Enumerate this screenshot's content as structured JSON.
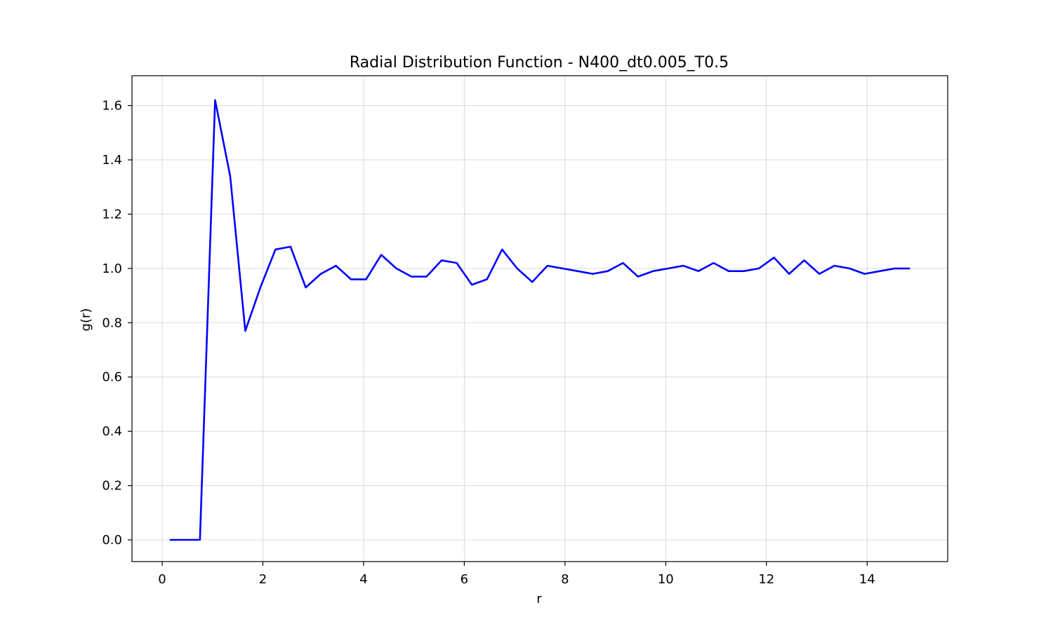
{
  "chart_data": {
    "type": "line",
    "title": "Radial Distribution Function - N400_dt0.005_T0.5",
    "xlabel": "r",
    "ylabel": "g(r)",
    "xlim": [
      -0.6,
      15.6
    ],
    "ylim": [
      -0.08,
      1.71
    ],
    "xticks": [
      0,
      2,
      4,
      6,
      8,
      10,
      12,
      14
    ],
    "yticks": [
      0.0,
      0.2,
      0.4,
      0.6,
      0.8,
      1.0,
      1.2,
      1.4,
      1.6
    ],
    "xtick_labels": [
      "0",
      "2",
      "4",
      "6",
      "8",
      "10",
      "12",
      "14"
    ],
    "ytick_labels": [
      "0.0",
      "0.2",
      "0.4",
      "0.6",
      "0.8",
      "1.0",
      "1.2",
      "1.4",
      "1.6"
    ],
    "grid": true,
    "color": "#0000ff",
    "series": [
      {
        "x": [
          0.15,
          0.45,
          0.75,
          1.05,
          1.35,
          1.65,
          1.95,
          2.25,
          2.55,
          2.85,
          3.15,
          3.45,
          3.75,
          4.05,
          4.35,
          4.65,
          4.95,
          5.25,
          5.55,
          5.85,
          6.15,
          6.45,
          6.75,
          7.05,
          7.35,
          7.65,
          7.95,
          8.25,
          8.55,
          8.85,
          9.15,
          9.45,
          9.75,
          10.05,
          10.35,
          10.65,
          10.95,
          11.25,
          11.55,
          11.85,
          12.15,
          12.45,
          12.75,
          13.05,
          13.35,
          13.65,
          13.95,
          14.25,
          14.55,
          14.85
        ],
        "values": [
          0.0,
          0.0,
          0.0,
          1.62,
          1.34,
          0.77,
          0.93,
          1.07,
          1.08,
          0.93,
          0.98,
          1.01,
          0.96,
          0.96,
          1.05,
          1.0,
          0.97,
          0.97,
          1.03,
          1.02,
          0.94,
          0.96,
          1.07,
          1.0,
          0.95,
          1.01,
          1.0,
          0.99,
          0.98,
          0.99,
          1.02,
          0.97,
          0.99,
          1.0,
          1.01,
          0.99,
          1.02,
          0.99,
          0.99,
          1.0,
          1.04,
          0.98,
          1.03,
          0.98,
          1.01,
          1.0,
          0.98,
          0.99,
          1.0,
          1.0
        ]
      }
    ]
  }
}
